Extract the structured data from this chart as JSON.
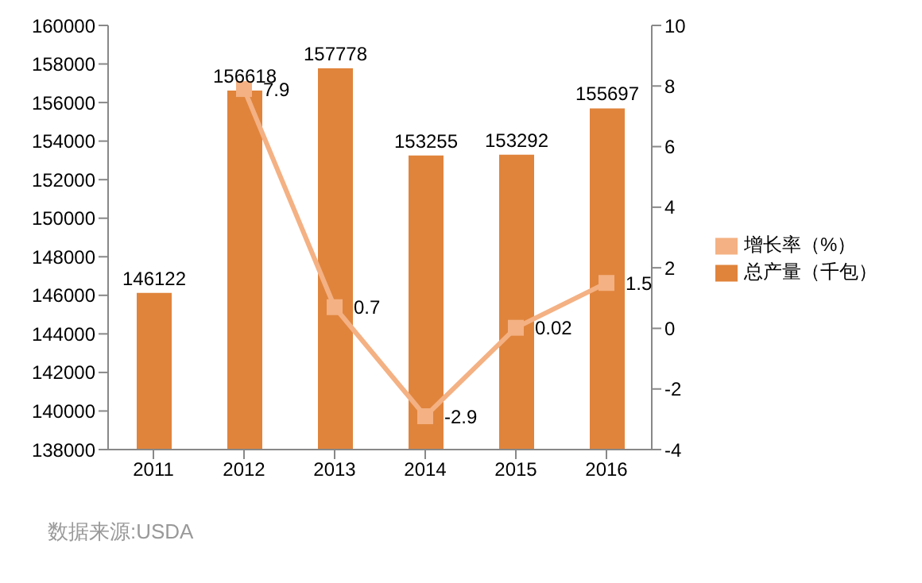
{
  "chart_data": {
    "type": "bar",
    "categories": [
      "2011",
      "2012",
      "2013",
      "2014",
      "2015",
      "2016"
    ],
    "series": [
      {
        "name": "总产量（千包）",
        "color": "#e0843c",
        "values": [
          146122,
          156618,
          157778,
          153255,
          153292,
          155697
        ]
      },
      {
        "name": "增长率（%）",
        "type": "line",
        "axis": "y2",
        "color": "#f4b183",
        "values": [
          null,
          7.9,
          0.7,
          -2.9,
          0.02,
          1.5
        ]
      }
    ],
    "ylim": [
      138000,
      160000
    ],
    "yticks": [
      138000,
      140000,
      142000,
      144000,
      146000,
      148000,
      150000,
      152000,
      154000,
      156000,
      158000,
      160000
    ],
    "y2lim": [
      -4,
      10
    ],
    "y2ticks": [
      -4,
      -2,
      0,
      2,
      4,
      6,
      8,
      10
    ],
    "grid": false,
    "legend": "right",
    "marker": "square",
    "line_style": "solid",
    "data_labels": true,
    "annotations": [
      "数据来源:USDA"
    ]
  }
}
